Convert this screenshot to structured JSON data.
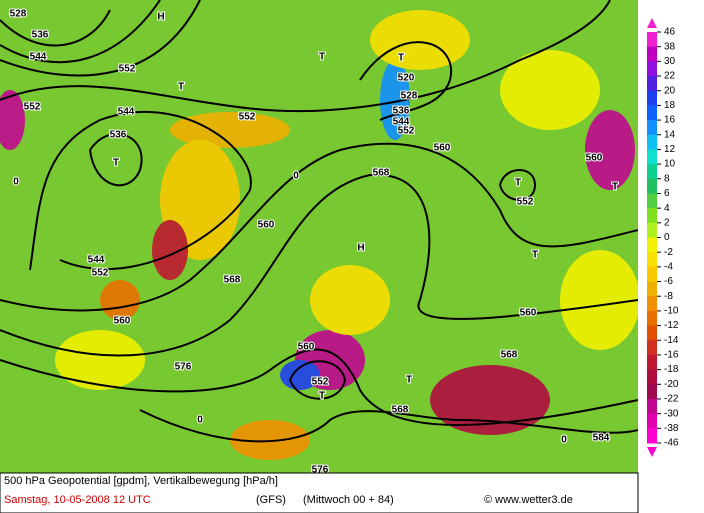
{
  "map": {
    "labels": [
      "528",
      "536",
      "544",
      "552",
      "H",
      "T",
      "552",
      "544",
      "536",
      "T",
      "552",
      "T",
      "T",
      "520",
      "528",
      "536",
      "544",
      "552",
      "560",
      "568",
      "T",
      "552",
      "560",
      "T",
      "T",
      "H",
      "560",
      "544",
      "552",
      "560",
      "568",
      "576",
      "560",
      "552",
      "T",
      "T",
      "568",
      "560",
      "568",
      "584",
      "576",
      "0",
      "0",
      "0",
      "0"
    ]
  },
  "legend": {
    "ticks": [
      46,
      38,
      30,
      22,
      20,
      18,
      16,
      14,
      12,
      10,
      8,
      6,
      4,
      2,
      0,
      -2,
      -4,
      -6,
      -8,
      -10,
      -12,
      -14,
      -16,
      -18,
      -20,
      -22,
      -30,
      -38,
      -46
    ],
    "colors": [
      "#f020d0",
      "#c000c0",
      "#9010e0",
      "#5020e0",
      "#2040f0",
      "#1060ff",
      "#1090ff",
      "#10c0f0",
      "#10e0d0",
      "#10d090",
      "#20c060",
      "#50d040",
      "#80e020",
      "#b0f020",
      "#f0f000",
      "#f8e000",
      "#f8c800",
      "#f0b000",
      "#f09000",
      "#e87000",
      "#e05000",
      "#d03020",
      "#c01830",
      "#b00c40",
      "#a00850",
      "#c00890",
      "#e000b0",
      "#ff00d0"
    ]
  },
  "footer": {
    "line1": "500 hPa Geopotential [gpdm], Vertikalbewegung [hPa/h]",
    "date": "Samstag, 10-05-2008  12 UTC",
    "model": "(GFS)",
    "run": "(Mittwoch 00 + 84)",
    "source": "© www.wetter3.de"
  }
}
